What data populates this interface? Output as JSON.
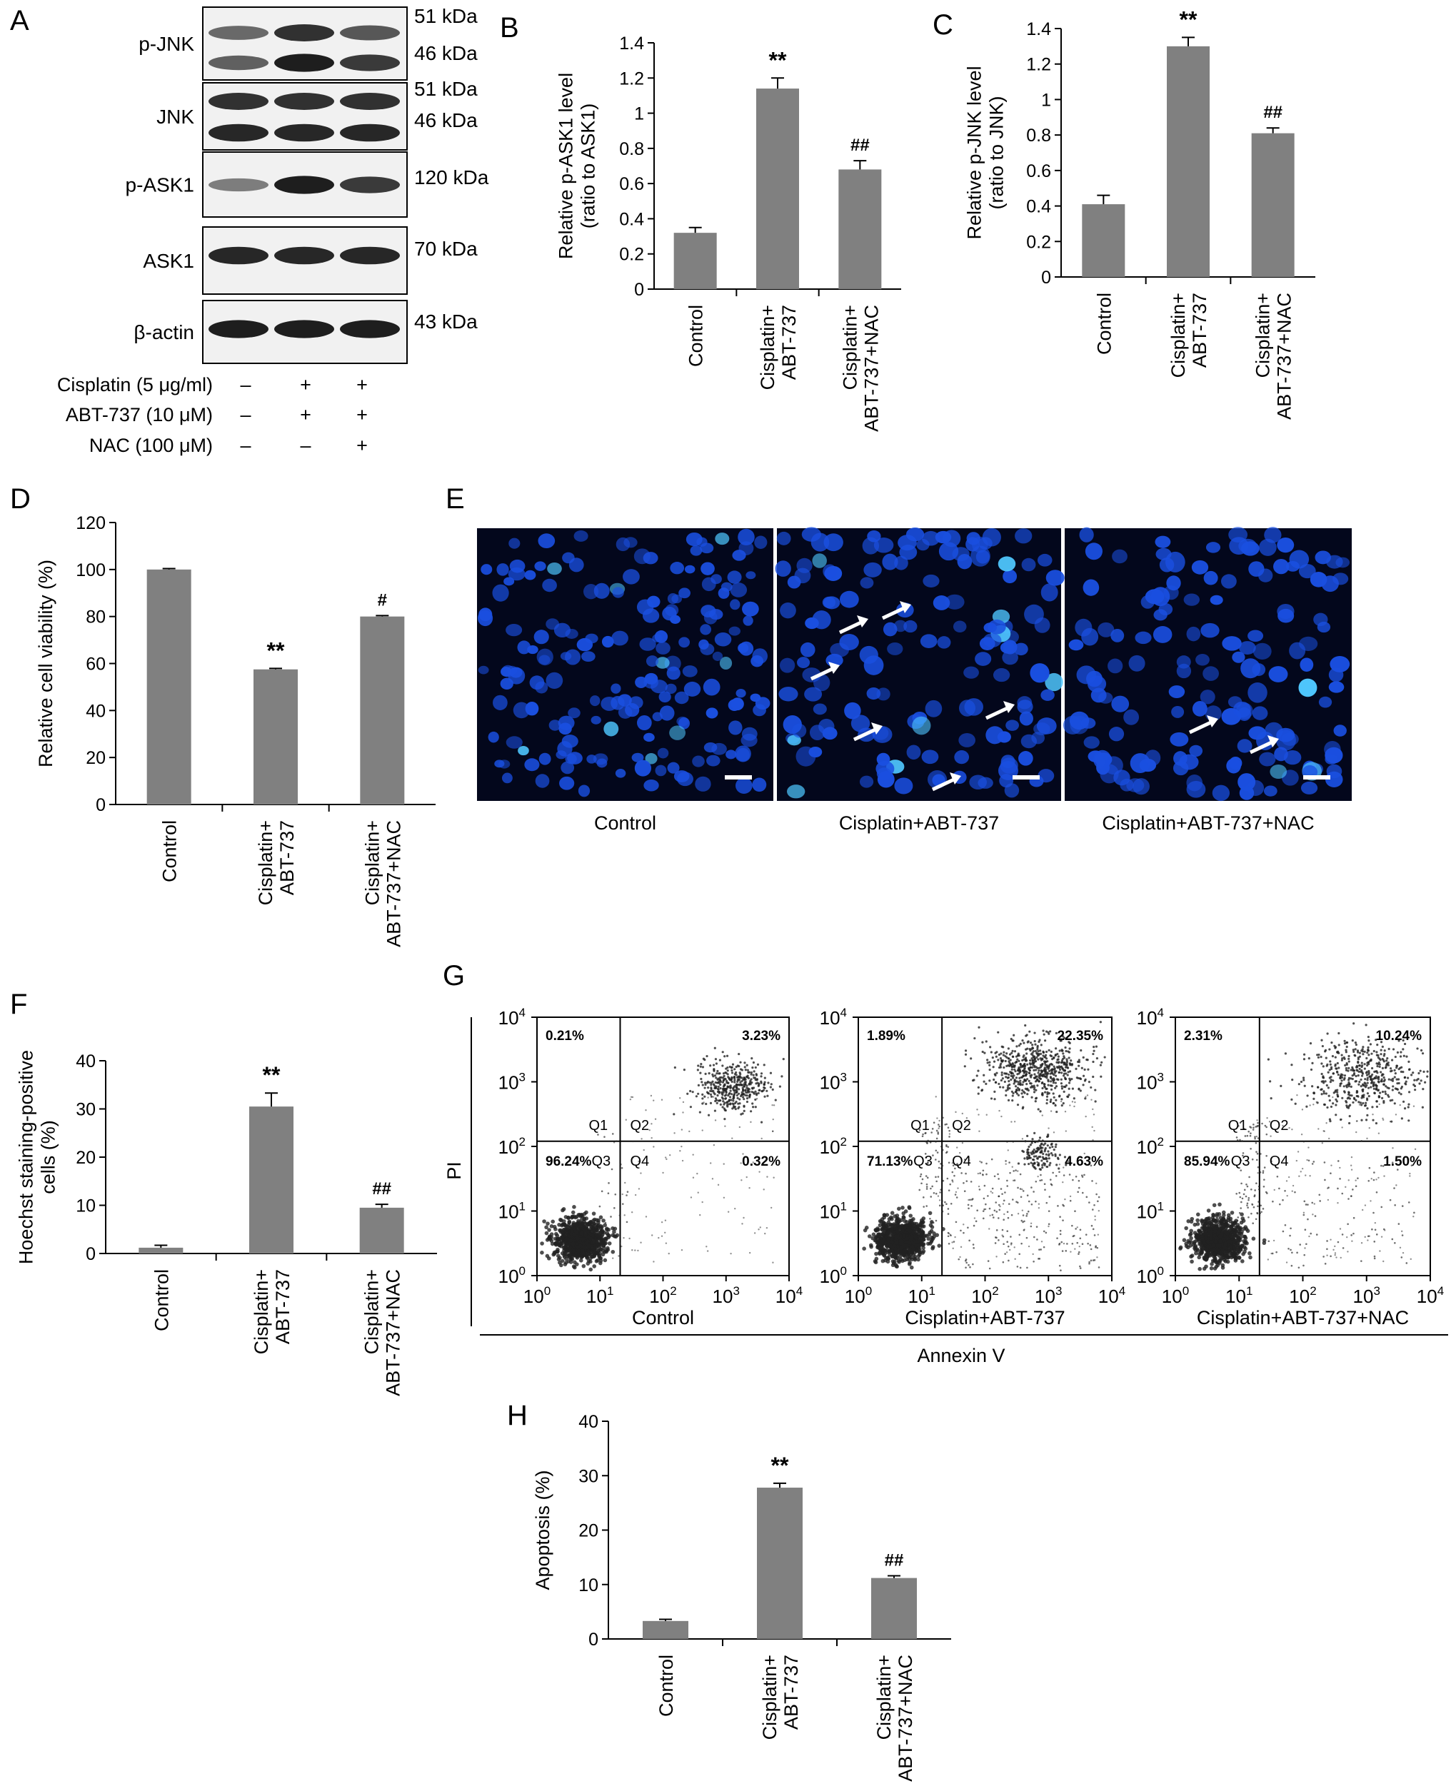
{
  "panels": {
    "a": "A",
    "b": "B",
    "c": "C",
    "d": "D",
    "e": "E",
    "f": "F",
    "g": "G",
    "h": "H"
  },
  "western_blot": {
    "blots": [
      {
        "name": "p-JNK",
        "sizes": [
          "51 kDa",
          "46 kDa"
        ]
      },
      {
        "name": "JNK",
        "sizes": [
          "51 kDa",
          "46 kDa"
        ]
      },
      {
        "name": "p-ASK1",
        "sizes": [
          "120 kDa"
        ]
      },
      {
        "name": "ASK1",
        "sizes": [
          "70 kDa"
        ]
      },
      {
        "name": "β-actin",
        "sizes": [
          "43 kDa"
        ]
      }
    ],
    "band_intensity": {
      "p-JNK_51": [
        0.55,
        0.85,
        0.65
      ],
      "p-JNK_46": [
        0.6,
        0.95,
        0.8
      ],
      "JNK_51": [
        0.85,
        0.85,
        0.85
      ],
      "JNK_46": [
        0.9,
        0.9,
        0.9
      ],
      "p-ASK1": [
        0.45,
        0.95,
        0.8
      ],
      "ASK1": [
        0.9,
        0.9,
        0.9
      ],
      "beta-actin": [
        0.95,
        0.95,
        0.95
      ]
    },
    "treatments": [
      {
        "label": "Cisplatin (5 μg/ml)",
        "marks": [
          "–",
          "+",
          "+"
        ]
      },
      {
        "label": "ABT-737 (10 μM)",
        "marks": [
          "–",
          "+",
          "+"
        ]
      },
      {
        "label": "NAC (100 μM)",
        "marks": [
          "–",
          "–",
          "+"
        ]
      }
    ]
  },
  "chart_data": [
    {
      "panel": "B",
      "type": "bar",
      "categories": [
        [
          "Control"
        ],
        [
          "Cisplatin+",
          "ABT-737"
        ],
        [
          "Cisplatin+",
          "ABT-737+NAC"
        ]
      ],
      "values": [
        0.32,
        1.14,
        0.68
      ],
      "errors": [
        0.03,
        0.06,
        0.05
      ],
      "annotations": [
        "",
        "**",
        "##"
      ],
      "ylabel": [
        "Relative p-ASK1 level",
        "(ratio to ASK1)"
      ],
      "ylim": [
        0,
        1.4
      ],
      "yticks": [
        "0",
        "0.2",
        "0.4",
        "0.6",
        "0.8",
        "1",
        "1.2",
        "1.4"
      ]
    },
    {
      "panel": "C",
      "type": "bar",
      "categories": [
        [
          "Control"
        ],
        [
          "Cisplatin+",
          "ABT-737"
        ],
        [
          "Cisplatin+",
          "ABT-737+NAC"
        ]
      ],
      "values": [
        0.41,
        1.3,
        0.81
      ],
      "errors": [
        0.05,
        0.05,
        0.03
      ],
      "annotations": [
        "",
        "**",
        "##"
      ],
      "ylabel": [
        "Relative p-JNK level",
        "(ratio to JNK)"
      ],
      "ylim": [
        0,
        1.4
      ],
      "yticks": [
        "0",
        "0.2",
        "0.4",
        "0.6",
        "0.8",
        "1",
        "1.2",
        "1.4"
      ]
    },
    {
      "panel": "D",
      "type": "bar",
      "categories": [
        [
          "Control"
        ],
        [
          "Cisplatin+",
          "ABT-737"
        ],
        [
          "Cisplatin+",
          "ABT-737+NAC"
        ]
      ],
      "values": [
        100,
        57.5,
        80
      ],
      "errors": [
        0.4,
        0.4,
        0.4
      ],
      "annotations": [
        "",
        "**",
        "#"
      ],
      "ylabel": [
        "Relative cell viability (%)"
      ],
      "ylim": [
        0,
        120
      ],
      "yticks": [
        "0",
        "20",
        "40",
        "60",
        "80",
        "100",
        "120"
      ]
    },
    {
      "panel": "F",
      "type": "bar",
      "categories": [
        [
          "Control"
        ],
        [
          "Cisplatin+",
          "ABT-737"
        ],
        [
          "Cisplatin+",
          "ABT-737+NAC"
        ]
      ],
      "values": [
        1.2,
        30.5,
        9.5
      ],
      "errors": [
        0.5,
        2.8,
        0.7
      ],
      "annotations": [
        "",
        "**",
        "##"
      ],
      "ylabel": [
        "Hoechst staining-positive",
        "cells (%)"
      ],
      "ylim": [
        0,
        40
      ],
      "yticks": [
        "0",
        "10",
        "20",
        "30",
        "40"
      ]
    },
    {
      "panel": "H",
      "type": "bar",
      "categories": [
        [
          "Control"
        ],
        [
          "Cisplatin+",
          "ABT-737"
        ],
        [
          "Cisplatin+",
          "ABT-737+NAC"
        ]
      ],
      "values": [
        3.3,
        27.8,
        11.2
      ],
      "errors": [
        0.3,
        0.8,
        0.4
      ],
      "annotations": [
        "",
        "**",
        "##"
      ],
      "ylabel": [
        "Apoptosis (%)"
      ],
      "ylim": [
        0,
        40
      ],
      "yticks": [
        "0",
        "10",
        "20",
        "30",
        "40"
      ]
    },
    {
      "panel": "G",
      "type": "scatter",
      "xlabel": "Annexin V",
      "ylabel": "PI",
      "xscale": "log",
      "yscale": "log",
      "tick_base": "10",
      "tick_exponents": [
        "0",
        "1",
        "2",
        "3",
        "4"
      ],
      "quadrant_labels": [
        "Q1",
        "Q2",
        "Q3",
        "Q4"
      ],
      "plots": [
        {
          "title": "Control",
          "quadrants": {
            "Q1": "0.21%",
            "Q2": "3.23%",
            "Q3": "96.24%",
            "Q4": "0.32%"
          }
        },
        {
          "title": "Cisplatin+ABT-737",
          "quadrants": {
            "Q1": "1.89%",
            "Q2": "22.35%",
            "Q3": "71.13%",
            "Q4": "4.63%"
          }
        },
        {
          "title": "Cisplatin+ABT-737+NAC",
          "quadrants": {
            "Q1": "2.31%",
            "Q2": "10.24%",
            "Q3": "85.94%",
            "Q4": "1.50%"
          }
        }
      ]
    }
  ],
  "microscopy": {
    "panel": "E",
    "images": [
      {
        "caption": "Control",
        "arrows": 0
      },
      {
        "caption": "Cisplatin+ABT-737",
        "arrows": 7
      },
      {
        "caption": "Cisplatin+ABT-737+NAC",
        "arrows": 2
      }
    ],
    "colors": {
      "background": "#03071c",
      "nucleus": "#1a4fe0",
      "bright": "#4fc7ff"
    }
  },
  "colors": {
    "bar": "#808080",
    "axis": "#000000"
  }
}
